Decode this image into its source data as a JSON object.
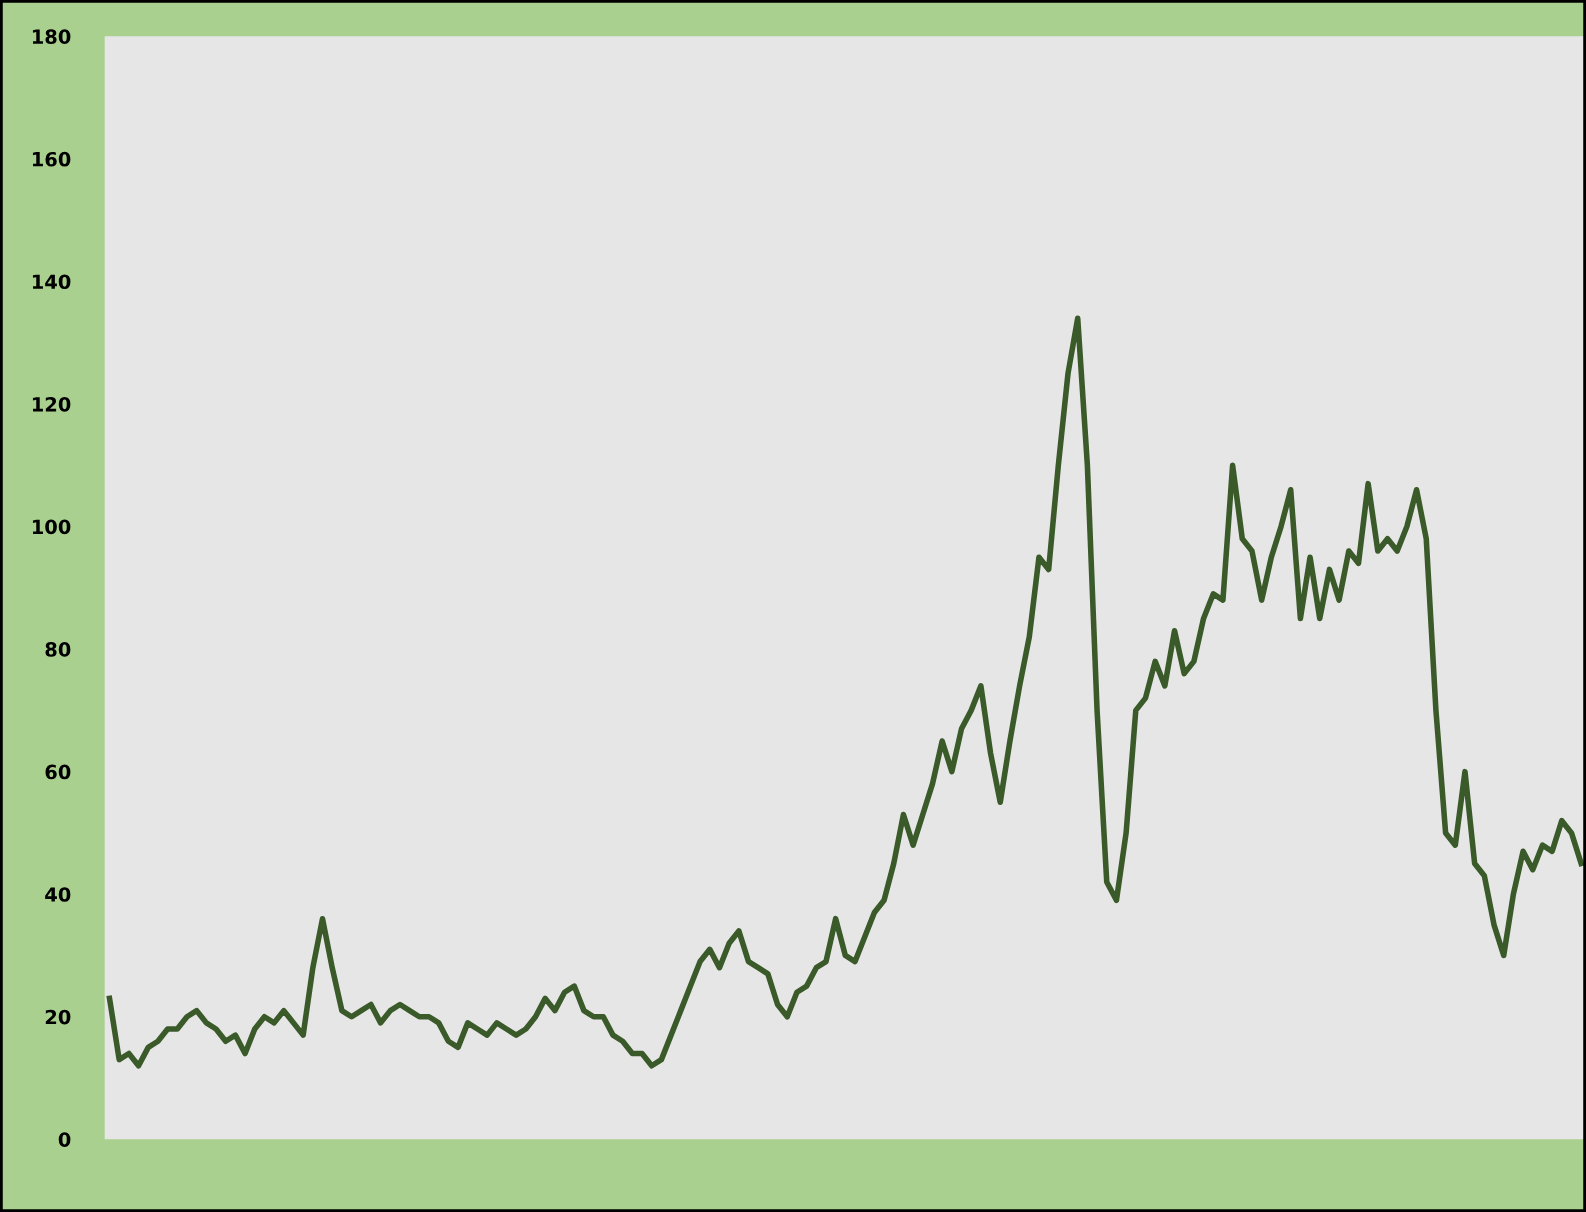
{
  "chart_data": {
    "type": "line",
    "categories": [
      null,
      null,
      null,
      null,
      null,
      null,
      null,
      null,
      null,
      null,
      null,
      null,
      null,
      null,
      null,
      null,
      null,
      null,
      null,
      null,
      null,
      null,
      null,
      null,
      null,
      null,
      null,
      null,
      null,
      null,
      null,
      null,
      null,
      null,
      null,
      null,
      null,
      null,
      null,
      null,
      null,
      null,
      null,
      null,
      null,
      null,
      null,
      null,
      null,
      null,
      null,
      null,
      null,
      null,
      null,
      null,
      null,
      null,
      null,
      null,
      null,
      null,
      null,
      null,
      null,
      null,
      null,
      null,
      null,
      null,
      null,
      null,
      null,
      null,
      null,
      null,
      null,
      null,
      null,
      null,
      null,
      null,
      null,
      null,
      null,
      null,
      null,
      null,
      null,
      null,
      null,
      null,
      null,
      null,
      null,
      null,
      null,
      null,
      null,
      null,
      null,
      null,
      null,
      null,
      null,
      null,
      null,
      null,
      null,
      null,
      null,
      null,
      null,
      null,
      null,
      null,
      null,
      null,
      null,
      null,
      null,
      null,
      null,
      null,
      null,
      null,
      null,
      null,
      null,
      null,
      null,
      null,
      null,
      null,
      null,
      null,
      null,
      null,
      null,
      null,
      null,
      null,
      null,
      null,
      null,
      null,
      null,
      null,
      null,
      null,
      null,
      null,
      null
    ],
    "series": [
      {
        "color": "#3a5a2a",
        "values": [
          23,
          13,
          14,
          12,
          15,
          16,
          18,
          18,
          20,
          21,
          19,
          18,
          16,
          17,
          14,
          18,
          20,
          19,
          21,
          19,
          17,
          28,
          36,
          28,
          21,
          20,
          21,
          22,
          19,
          21,
          22,
          21,
          20,
          20,
          19,
          16,
          15,
          19,
          18,
          17,
          19,
          18,
          17,
          18,
          20,
          23,
          21,
          24,
          25,
          21,
          20,
          20,
          17,
          16,
          14,
          14,
          12,
          13,
          17,
          21,
          25,
          29,
          31,
          28,
          32,
          34,
          29,
          28,
          27,
          22,
          20,
          24,
          25,
          28,
          29,
          36,
          30,
          29,
          33,
          37,
          39,
          45,
          53,
          48,
          53,
          58,
          65,
          60,
          67,
          70,
          74,
          63,
          55,
          65,
          74,
          82,
          95,
          93,
          110,
          125,
          134,
          110,
          70,
          42,
          39,
          50,
          70,
          72,
          78,
          74,
          83,
          76,
          78,
          85,
          89,
          88,
          110,
          98,
          96,
          88,
          95,
          100,
          106,
          85,
          95,
          85,
          93,
          88,
          96,
          94,
          107,
          96,
          98,
          96,
          100,
          106,
          98,
          70,
          50,
          48,
          60,
          45,
          43,
          35,
          30,
          40,
          47,
          44,
          48,
          47,
          52,
          50,
          45
        ]
      }
    ],
    "ylim": [
      0,
      180
    ],
    "yticks": [
      0,
      20,
      40,
      60,
      80,
      100,
      120,
      140,
      160,
      180
    ],
    "grid": false,
    "legend": false,
    "marker": "none",
    "line_style": "solid",
    "tick_labels": "y"
  }
}
